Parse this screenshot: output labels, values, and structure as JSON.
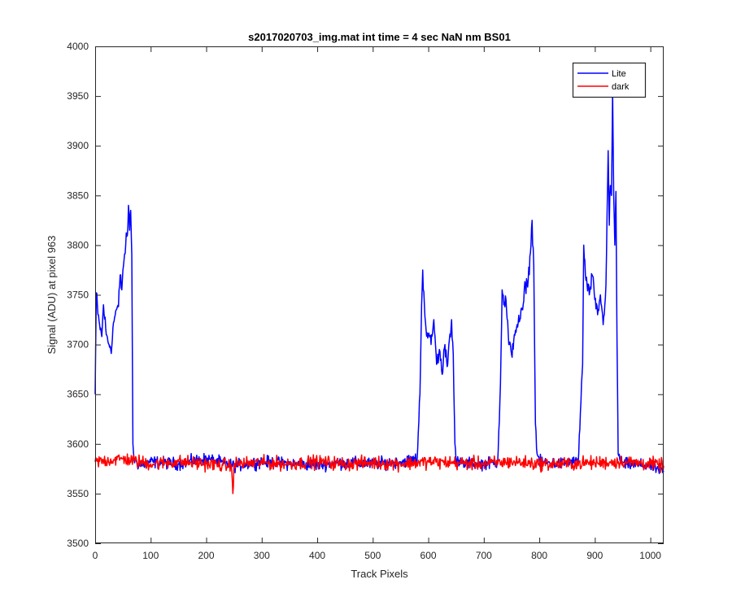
{
  "chart_data": {
    "type": "line",
    "title": "s2017020703_img.mat int time = 4 sec  NaN nm BS01",
    "xlabel": "Track Pixels",
    "ylabel": "Signal (ADU) at pixel 963",
    "xlim": [
      0,
      1024
    ],
    "ylim": [
      3500,
      4000
    ],
    "xticks": [
      0,
      100,
      200,
      300,
      400,
      500,
      600,
      700,
      800,
      900,
      1000
    ],
    "yticks": [
      3500,
      3550,
      3600,
      3650,
      3700,
      3750,
      3800,
      3850,
      3900,
      3950,
      4000
    ],
    "grid": false,
    "legend": "top-right",
    "series": [
      {
        "name": "Lite",
        "color": "#0000ff",
        "x": [
          0,
          2,
          5,
          8,
          12,
          15,
          20,
          25,
          30,
          33,
          38,
          42,
          45,
          48,
          50,
          52,
          55,
          58,
          60,
          62,
          64,
          66,
          68,
          70,
          80,
          100,
          150,
          200,
          250,
          300,
          350,
          400,
          450,
          500,
          550,
          580,
          585,
          588,
          590,
          593,
          596,
          600,
          605,
          610,
          615,
          620,
          625,
          630,
          635,
          638,
          642,
          645,
          648,
          650,
          660,
          700,
          725,
          730,
          733,
          736,
          740,
          745,
          750,
          755,
          760,
          765,
          770,
          775,
          780,
          785,
          787,
          790,
          793,
          796,
          800,
          830,
          870,
          878,
          880,
          883,
          886,
          890,
          895,
          900,
          905,
          910,
          915,
          920,
          924,
          926,
          928,
          930,
          932,
          934,
          936,
          938,
          940,
          942,
          950,
          1000,
          1024
        ],
        "y": [
          3650,
          3752,
          3730,
          3720,
          3708,
          3740,
          3710,
          3700,
          3698,
          3722,
          3735,
          3738,
          3770,
          3755,
          3775,
          3785,
          3800,
          3810,
          3840,
          3815,
          3835,
          3790,
          3600,
          3585,
          3578,
          3582,
          3580,
          3585,
          3578,
          3582,
          3580,
          3579,
          3581,
          3580,
          3582,
          3585,
          3650,
          3740,
          3775,
          3740,
          3715,
          3710,
          3700,
          3725,
          3680,
          3695,
          3670,
          3700,
          3680,
          3705,
          3725,
          3690,
          3600,
          3582,
          3580,
          3580,
          3582,
          3660,
          3755,
          3740,
          3745,
          3700,
          3690,
          3710,
          3720,
          3725,
          3735,
          3760,
          3765,
          3800,
          3825,
          3780,
          3620,
          3590,
          3582,
          3580,
          3582,
          3680,
          3800,
          3770,
          3760,
          3750,
          3770,
          3745,
          3730,
          3750,
          3720,
          3760,
          3895,
          3820,
          3860,
          3850,
          3955,
          3850,
          3800,
          3854,
          3700,
          3590,
          3580,
          3578,
          3572
        ]
      },
      {
        "name": "dark",
        "color": "#ff0000",
        "x": [
          0,
          50,
          100,
          150,
          200,
          245,
          248,
          250,
          300,
          350,
          400,
          450,
          500,
          550,
          600,
          650,
          700,
          750,
          800,
          850,
          900,
          950,
          1000,
          1024
        ],
        "y": [
          3582,
          3585,
          3580,
          3582,
          3580,
          3578,
          3550,
          3580,
          3581,
          3580,
          3582,
          3580,
          3581,
          3580,
          3582,
          3581,
          3580,
          3582,
          3580,
          3580,
          3581,
          3582,
          3580,
          3578
        ]
      }
    ]
  }
}
